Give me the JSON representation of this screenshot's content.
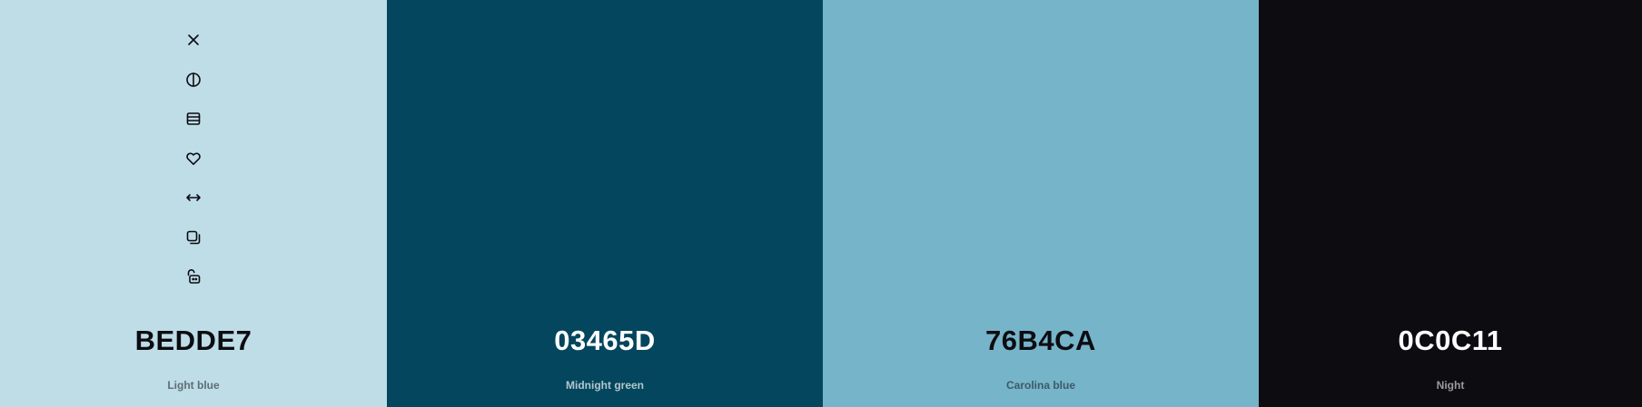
{
  "swatches": [
    {
      "hex": "BEDDE7",
      "name": "Light blue",
      "bg": "#bedde7",
      "text_color": "#0c0c11",
      "name_color": "#5e6e74"
    },
    {
      "hex": "03465D",
      "name": "Midnight green",
      "bg": "#03465d",
      "text_color": "#ffffff",
      "name_color": "#b3c6cd"
    },
    {
      "hex": "76B4CA",
      "name": "Carolina blue",
      "bg": "#76b4ca",
      "text_color": "#0c0c11",
      "name_color": "#3d5a65"
    },
    {
      "hex": "0C0C11",
      "name": "Night",
      "bg": "#0c0c11",
      "text_color": "#ffffff",
      "name_color": "#9a9aa0"
    }
  ],
  "toolbar": {
    "icons": [
      "close-icon",
      "contrast-icon",
      "shades-icon",
      "heart-icon",
      "drag-icon",
      "copy-icon",
      "unlock-icon"
    ]
  }
}
